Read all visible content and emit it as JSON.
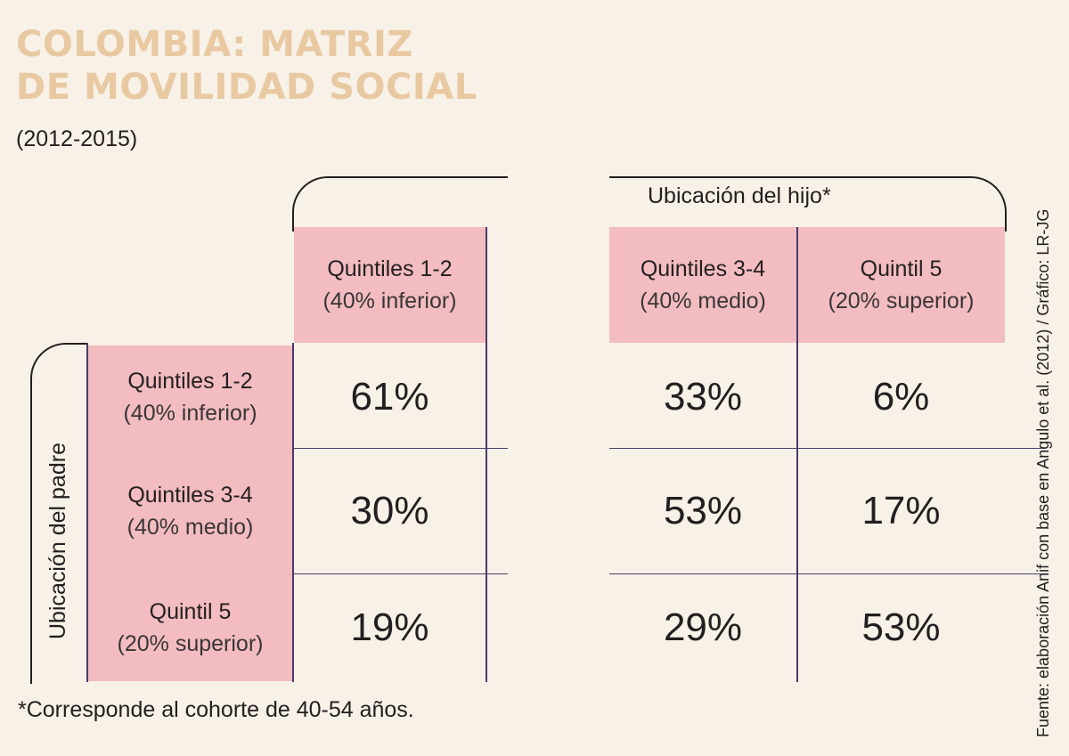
{
  "title_line1": "COLOMBIA: MATRIZ",
  "title_line2": "DE MOVILIDAD SOCIAL",
  "subtitle": "(2012-2015)",
  "source": "Fuente:  elaboración Anif con base en Angulo et al.  (2012) / Gráfico: LR-JG",
  "footnote": "*Corresponde al cohorte de 40-54 años.",
  "colors": {
    "title": "#e8c9a2",
    "header_fill": "#f2bcc0",
    "background": "#f8f1e7",
    "grid_line": "#4a3a6a"
  },
  "chart_data": {
    "type": "table",
    "column_group_label": "Ubicación del hijo*",
    "row_group_label": "Ubicación del padre",
    "columns": [
      {
        "name": "Quintiles 1-2",
        "sub": "(40% inferior)"
      },
      {
        "name": "Quintiles 3-4",
        "sub": "(40% medio)"
      },
      {
        "name": "Quintil 5",
        "sub": "(20% superior)"
      }
    ],
    "rows": [
      {
        "name": "Quintiles 1-2",
        "sub": "(40% inferior)",
        "values": [
          "61%",
          "33%",
          "6%"
        ]
      },
      {
        "name": "Quintiles 3-4",
        "sub": "(40% medio)",
        "values": [
          "30%",
          "53%",
          "17%"
        ]
      },
      {
        "name": "Quintil 5",
        "sub": "(20% superior)",
        "values": [
          "19%",
          "29%",
          "53%"
        ]
      }
    ]
  }
}
